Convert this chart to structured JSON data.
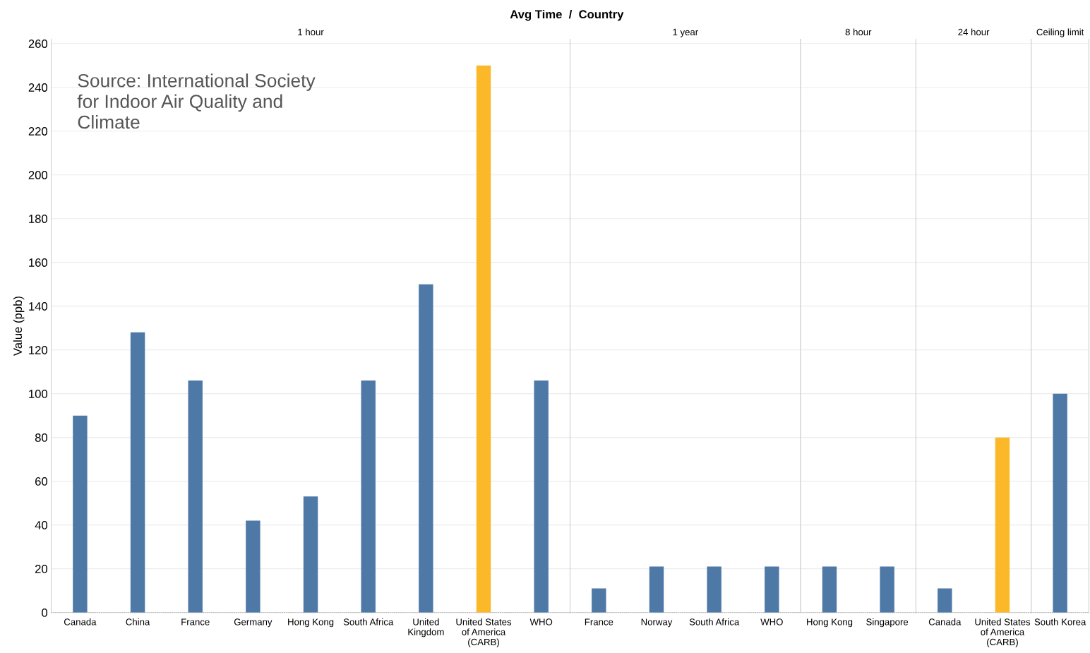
{
  "chart_data": [
    {
      "type": "bar",
      "title": "1 hour",
      "ylabel": "Value (ppb)",
      "annotations": [
        "Avg Time  /  Country",
        "Source: International Society\nfor Indoor Air Quality and\nClimate"
      ],
      "categories": [
        "Canada",
        "China",
        "France",
        "Germany",
        "Hong Kong",
        "South Africa",
        "United\nKingdom",
        "United States\nof America\n(CARB)",
        "WHO"
      ],
      "values": [
        90,
        128,
        106,
        42,
        53,
        106,
        150,
        250,
        106
      ],
      "colors": [
        "#4e79a7",
        "#4e79a7",
        "#4e79a7",
        "#4e79a7",
        "#4e79a7",
        "#4e79a7",
        "#4e79a7",
        "#fbb829",
        "#4e79a7"
      ],
      "ylim": [
        0,
        262
      ],
      "yticks": [
        0,
        20,
        40,
        60,
        80,
        100,
        120,
        140,
        160,
        180,
        200,
        220,
        240,
        260
      ],
      "grid": "y"
    },
    {
      "type": "bar",
      "title": "1 year",
      "categories": [
        "France",
        "Norway",
        "South Africa",
        "WHO"
      ],
      "values": [
        11,
        21,
        21,
        21
      ],
      "colors": [
        "#4e79a7",
        "#4e79a7",
        "#4e79a7",
        "#4e79a7"
      ],
      "ylim": [
        0,
        262
      ],
      "yticks": [
        0,
        20,
        40,
        60,
        80,
        100,
        120,
        140,
        160,
        180,
        200,
        220,
        240,
        260
      ],
      "grid": "y",
      "tick_labels": "x"
    },
    {
      "type": "bar",
      "title": "8 hour",
      "categories": [
        "Hong Kong",
        "Singapore"
      ],
      "values": [
        21,
        21
      ],
      "colors": [
        "#4e79a7",
        "#4e79a7"
      ],
      "ylim": [
        0,
        262
      ],
      "yticks": [
        0,
        20,
        40,
        60,
        80,
        100,
        120,
        140,
        160,
        180,
        200,
        220,
        240,
        260
      ],
      "grid": "y",
      "tick_labels": "x"
    },
    {
      "type": "bar",
      "title": "24 hour",
      "categories": [
        "Canada",
        "United States\nof America\n(CARB)"
      ],
      "values": [
        11,
        80
      ],
      "colors": [
        "#4e79a7",
        "#fbb829"
      ],
      "ylim": [
        0,
        262
      ],
      "yticks": [
        0,
        20,
        40,
        60,
        80,
        100,
        120,
        140,
        160,
        180,
        200,
        220,
        240,
        260
      ],
      "grid": "y",
      "tick_labels": "x"
    },
    {
      "type": "bar",
      "title": "Ceiling limit",
      "categories": [
        "South Korea"
      ],
      "values": [
        100
      ],
      "colors": [
        "#4e79a7"
      ],
      "ylim": [
        0,
        262
      ],
      "yticks": [
        0,
        20,
        40,
        60,
        80,
        100,
        120,
        140,
        160,
        180,
        200,
        220,
        240,
        260
      ],
      "grid": "y",
      "tick_labels": "x"
    }
  ]
}
